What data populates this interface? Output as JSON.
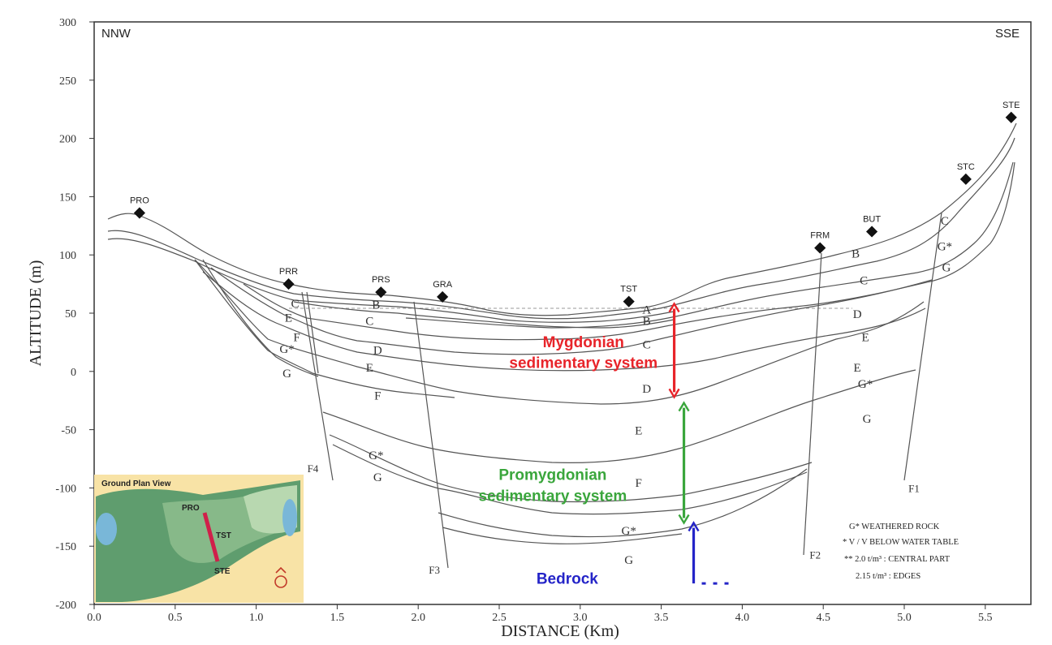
{
  "orientation": {
    "left": "NNW",
    "right": "SSE"
  },
  "axes": {
    "xlabel": "DISTANCE (Km)",
    "ylabel": "ALTITUDE (m)",
    "x_ticks": [
      "0.0",
      "0.5",
      "1.0",
      "1.5",
      "2.0",
      "2.5",
      "3.0",
      "3.5",
      "4.0",
      "4.5",
      "5.0",
      "5.5"
    ],
    "y_ticks": [
      "300",
      "250",
      "200",
      "150",
      "100",
      "50",
      "0",
      "-50",
      "-100",
      "-150",
      "-200"
    ],
    "xlim": [
      0.0,
      5.78
    ],
    "ylim": [
      -200,
      300
    ]
  },
  "boreholes": [
    {
      "label": "PRO",
      "x": 0.28,
      "y": 136
    },
    {
      "label": "PRR",
      "x": 1.2,
      "y": 75
    },
    {
      "label": "PRS",
      "x": 1.77,
      "y": 68
    },
    {
      "label": "GRA",
      "x": 2.15,
      "y": 64
    },
    {
      "label": "TST",
      "x": 3.3,
      "y": 60
    },
    {
      "label": "FRM",
      "x": 4.48,
      "y": 106
    },
    {
      "label": "BUT",
      "x": 4.8,
      "y": 120
    },
    {
      "label": "STC",
      "x": 5.38,
      "y": 165
    },
    {
      "label": "STE",
      "x": 5.66,
      "y": 218
    }
  ],
  "faults": [
    {
      "label": "F1",
      "x": 5.06,
      "y": -100
    },
    {
      "label": "F2",
      "x": 4.45,
      "y": -157
    },
    {
      "label": "F3",
      "x": 2.1,
      "y": -170
    },
    {
      "label": "F4",
      "x": 1.35,
      "y": -83
    }
  ],
  "layer_labels": [
    {
      "text": "C",
      "x": 1.24,
      "y": 59
    },
    {
      "text": "E",
      "x": 1.2,
      "y": 47
    },
    {
      "text": "F",
      "x": 1.25,
      "y": 30
    },
    {
      "text": "G*",
      "x": 1.19,
      "y": 20
    },
    {
      "text": "G",
      "x": 1.19,
      "y": -1
    },
    {
      "text": "B",
      "x": 1.74,
      "y": 58
    },
    {
      "text": "C",
      "x": 1.7,
      "y": 44
    },
    {
      "text": "D",
      "x": 1.75,
      "y": 19
    },
    {
      "text": "E",
      "x": 1.7,
      "y": 4
    },
    {
      "text": "F",
      "x": 1.75,
      "y": -20
    },
    {
      "text": "G*",
      "x": 1.74,
      "y": -71
    },
    {
      "text": "G",
      "x": 1.75,
      "y": -90
    },
    {
      "text": "A",
      "x": 3.41,
      "y": 54
    },
    {
      "text": "B",
      "x": 3.41,
      "y": 44
    },
    {
      "text": "C",
      "x": 3.41,
      "y": 24
    },
    {
      "text": "D",
      "x": 3.41,
      "y": -14
    },
    {
      "text": "E",
      "x": 3.36,
      "y": -50
    },
    {
      "text": "F",
      "x": 3.36,
      "y": -95
    },
    {
      "text": "G*",
      "x": 3.3,
      "y": -136
    },
    {
      "text": "G",
      "x": 3.3,
      "y": -161
    },
    {
      "text": "B",
      "x": 4.7,
      "y": 102
    },
    {
      "text": "C",
      "x": 4.75,
      "y": 79
    },
    {
      "text": "D",
      "x": 4.71,
      "y": 50
    },
    {
      "text": "E",
      "x": 4.76,
      "y": 30
    },
    {
      "text": "E",
      "x": 4.71,
      "y": 4
    },
    {
      "text": "G*",
      "x": 4.76,
      "y": -10
    },
    {
      "text": "G",
      "x": 4.77,
      "y": -40
    },
    {
      "text": "C",
      "x": 5.25,
      "y": 130
    },
    {
      "text": "G*",
      "x": 5.25,
      "y": 108
    },
    {
      "text": "G",
      "x": 5.26,
      "y": 90
    }
  ],
  "systems": [
    {
      "line1": "Mygdonian",
      "line2": "sedimentary system",
      "color": "#e8242a",
      "x": 3.02,
      "y1": 25,
      "y2": 7,
      "arrow_x": 3.58,
      "arrow_top": 58,
      "arrow_bottom": -22
    },
    {
      "line1": "Promygdonian",
      "line2": "sedimentary system",
      "color": "#3aa63c",
      "x": 2.83,
      "y1": -89,
      "y2": -107,
      "arrow_x": 3.64,
      "arrow_top": -27,
      "arrow_bottom": -130
    }
  ],
  "bedrock": {
    "label": "Bedrock",
    "color": "#2424c8",
    "x": 2.92,
    "y": -178,
    "arrow_x": 3.7,
    "arrow_top": -130,
    "arrow_bottom": -182
  },
  "legend": [
    {
      "prefix": "G*",
      "text": "WEATHERED ROCK"
    },
    {
      "prefix": "* V",
      "text": "/ V BELOW WATER TABLE"
    },
    {
      "prefix": "** 2.0 t/m³",
      "text": ": CENTRAL PART"
    },
    {
      "prefix": "2.15 t/m³",
      "text": ": EDGES"
    }
  ],
  "inset": {
    "title": "Ground Plan View",
    "labels": [
      "PRO",
      "TST",
      "STE"
    ],
    "background": "#f8e3a6",
    "section_color": "#d0204a"
  },
  "colors": {
    "frame": "#333333",
    "lines": "#555555",
    "water_table": "#9a9a9a"
  }
}
